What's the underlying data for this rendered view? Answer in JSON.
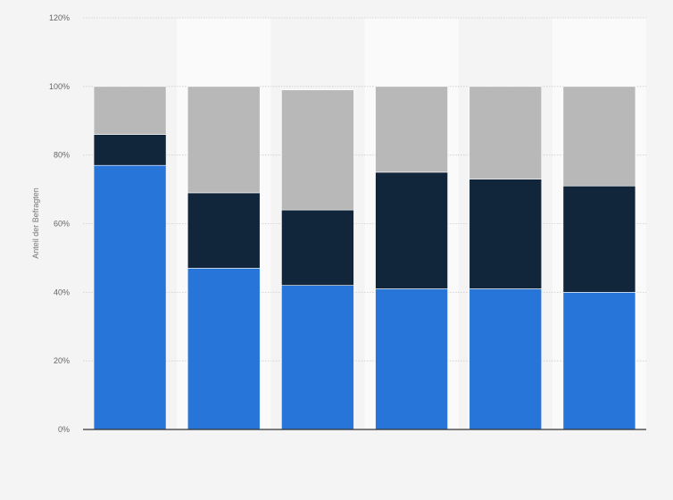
{
  "chart_data": {
    "type": "bar",
    "stacked": true,
    "categories": [
      "",
      "",
      "",
      "",
      "",
      ""
    ],
    "series": [
      {
        "color": "#2875d9",
        "values": [
          77,
          47,
          42,
          41,
          41,
          40
        ]
      },
      {
        "color": "#11253b",
        "values": [
          9,
          22,
          22,
          34,
          32,
          31
        ]
      },
      {
        "color": "#b8b8b8",
        "values": [
          14,
          31,
          35,
          25,
          27,
          29
        ]
      }
    ],
    "ylabel": "Anteil der Befragten",
    "ylim": [
      0,
      120
    ],
    "yticks": [
      "0%",
      "20%",
      "40%",
      "60%",
      "80%",
      "100%",
      "120%"
    ],
    "grid": true,
    "legend": "none"
  },
  "colors": {
    "background": "#f4f4f4",
    "alt_band": "#fafafa",
    "gridline": "#cccccc",
    "baseline": "#333333"
  }
}
